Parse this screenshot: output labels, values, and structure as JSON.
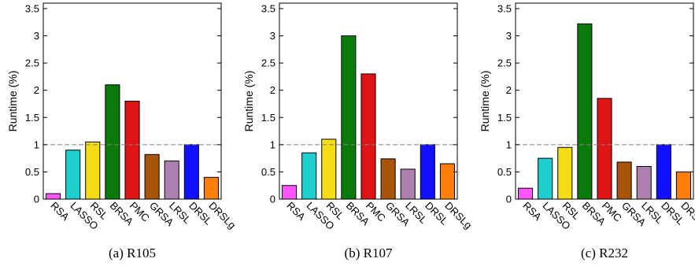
{
  "colors": {
    "RSA": "#ff55ff",
    "LASSO": "#1fcfcf",
    "RSL": "#f5dc14",
    "BRSA": "#0a7a0a",
    "PMC": "#e01414",
    "GRSA": "#a8540a",
    "LRSL": "#ad80b0",
    "DRSL": "#1010ff",
    "DRSLg": "#ff7f0e",
    "reference_line": "#7f7f7f"
  },
  "chart_data": [
    {
      "type": "bar",
      "caption": "(a) R105",
      "ylabel": "Runtime (%)",
      "categories": [
        "RSA",
        "LASSO",
        "RSL",
        "BRSA",
        "PMC",
        "GRSA",
        "LRSL",
        "DRSL",
        "DRSLg"
      ],
      "values": [
        0.1,
        0.9,
        1.05,
        2.1,
        1.8,
        0.82,
        0.7,
        1.0,
        0.4
      ],
      "ylim": [
        0,
        3.6
      ],
      "yticks": [
        "0",
        "0.5",
        "1",
        "1.5",
        "2",
        "2.5",
        "3",
        "3.5"
      ],
      "reference_line": 1,
      "grid": false
    },
    {
      "type": "bar",
      "caption": "(b) R107",
      "ylabel": "Runtime (%)",
      "categories": [
        "RSA",
        "LASSO",
        "RSL",
        "BRSA",
        "PMC",
        "GRSA",
        "LRSL",
        "DRSL",
        "DRSLg"
      ],
      "values": [
        0.25,
        0.85,
        1.1,
        3.0,
        2.3,
        0.74,
        0.55,
        1.0,
        0.65
      ],
      "ylim": [
        0,
        3.6
      ],
      "yticks": [
        "0",
        "0.5",
        "1",
        "1.5",
        "2",
        "2.5",
        "3",
        "3.5"
      ],
      "reference_line": 1,
      "grid": false
    },
    {
      "type": "bar",
      "caption": "(c) R232",
      "ylabel": "Runtime (%)",
      "categories": [
        "RSA",
        "LASSO",
        "RSL",
        "BRSA",
        "PMC",
        "GRSA",
        "LRSL",
        "DRSL",
        "DRSLg"
      ],
      "values": [
        0.2,
        0.75,
        0.95,
        3.22,
        1.85,
        0.68,
        0.6,
        1.0,
        0.5
      ],
      "ylim": [
        0,
        3.6
      ],
      "yticks": [
        "0",
        "0.5",
        "1",
        "1.5",
        "2",
        "2.5",
        "3",
        "3.5"
      ],
      "reference_line": 1,
      "grid": false
    }
  ]
}
